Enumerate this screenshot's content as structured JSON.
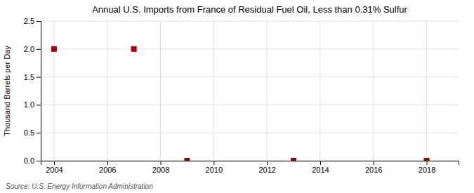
{
  "chart_data": {
    "type": "scatter",
    "title": "Annual U.S. Imports from France of Residual Fuel Oil, Less than 0.31% Sulfur",
    "ylabel": "Thousand Barrels per Day",
    "annotations": [
      "Source: U.S. Energy Information Administration"
    ],
    "x": [
      2004,
      2007,
      2009,
      2013,
      2018
    ],
    "values": [
      2.0,
      2.0,
      0.0,
      0.0,
      0.0
    ],
    "color": "#aa0000",
    "marker": "square",
    "xlim": [
      2003.5,
      2019.2
    ],
    "ylim": [
      0.0,
      2.5
    ],
    "xticks": [
      2004,
      2006,
      2008,
      2010,
      2012,
      2014,
      2016,
      2018
    ],
    "yticks": [
      {
        "value": 0.0,
        "label": "0.0"
      },
      0.5,
      {
        "value": 1.0,
        "label": "1.0"
      },
      1.5,
      {
        "value": 2.0,
        "label": "2.0"
      },
      2.5
    ],
    "grid": true
  }
}
